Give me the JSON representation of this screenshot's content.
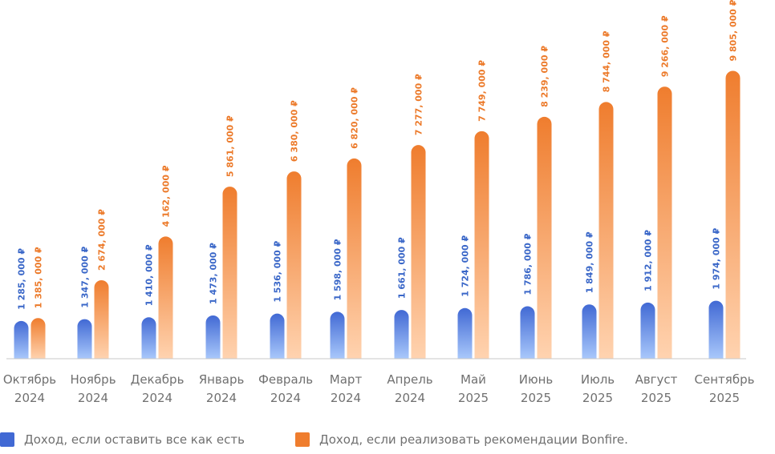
{
  "colors": {
    "blue_top": "#4169d4",
    "blue_bottom": "#a9c8fb",
    "orange_top": "#ef7d2e",
    "orange_bottom": "#ffd3b0",
    "blue_text": "#3a67c8",
    "orange_text": "#ec7a2a",
    "axis_text": "#707070",
    "baseline": "#c8c8c8"
  },
  "legend": {
    "blue_label": "Доход, если оставить все как есть",
    "orange_label": "Доход, если реализовать рекомендации Bonfire."
  },
  "chart_data": {
    "type": "bar",
    "categories": [
      [
        "Октябрь",
        "2024"
      ],
      [
        "Ноябрь",
        "2024"
      ],
      [
        "Декабрь",
        "2024"
      ],
      [
        "Январь",
        "2024"
      ],
      [
        "Февраль",
        "2024"
      ],
      [
        "Март",
        "2024"
      ],
      [
        "Апрель",
        "2024"
      ],
      [
        "Май",
        "2025"
      ],
      [
        "Июнь",
        "2025"
      ],
      [
        "Июль",
        "2025"
      ],
      [
        "Август",
        "2025"
      ],
      [
        "Сентябрь",
        "2025"
      ]
    ],
    "series": [
      {
        "name": "Доход, если оставить все как есть",
        "color": "blue",
        "values": [
          1285000,
          1347000,
          1410000,
          1473000,
          1536000,
          1598000,
          1661000,
          1724000,
          1786000,
          1849000,
          1912000,
          1974000
        ],
        "labels": [
          "1 285, 000 ₽",
          "1 347, 000 ₽",
          "1 410, 000 ₽",
          "1 473, 000 ₽",
          "1 536, 000 ₽",
          "1 598, 000 ₽",
          "1 661, 000 ₽",
          "1 724, 000 ₽",
          "1 786, 000 ₽",
          "1 849, 000 ₽",
          "1 912, 000 ₽",
          "1 974, 000 ₽"
        ]
      },
      {
        "name": "Доход, если реализовать рекомендации Bonfire.",
        "color": "orange",
        "values": [
          1385000,
          2674000,
          4162000,
          5861000,
          6380000,
          6820000,
          7277000,
          7749000,
          8239000,
          8744000,
          9266000,
          9805000
        ],
        "labels": [
          "1 385, 000 ₽",
          "2 674, 000 ₽",
          "4 162, 000 ₽",
          "5 861, 000 ₽",
          "6 380, 000 ₽",
          "6 820, 000 ₽",
          "7 277, 000 ₽",
          "7 749, 000 ₽",
          "8 239, 000 ₽",
          "8 744, 000 ₽",
          "9 266, 000 ₽",
          "9 805, 000 ₽"
        ]
      }
    ],
    "ylim": [
      0,
      10000000
    ],
    "grid": false,
    "legend_position": "bottom-left"
  }
}
